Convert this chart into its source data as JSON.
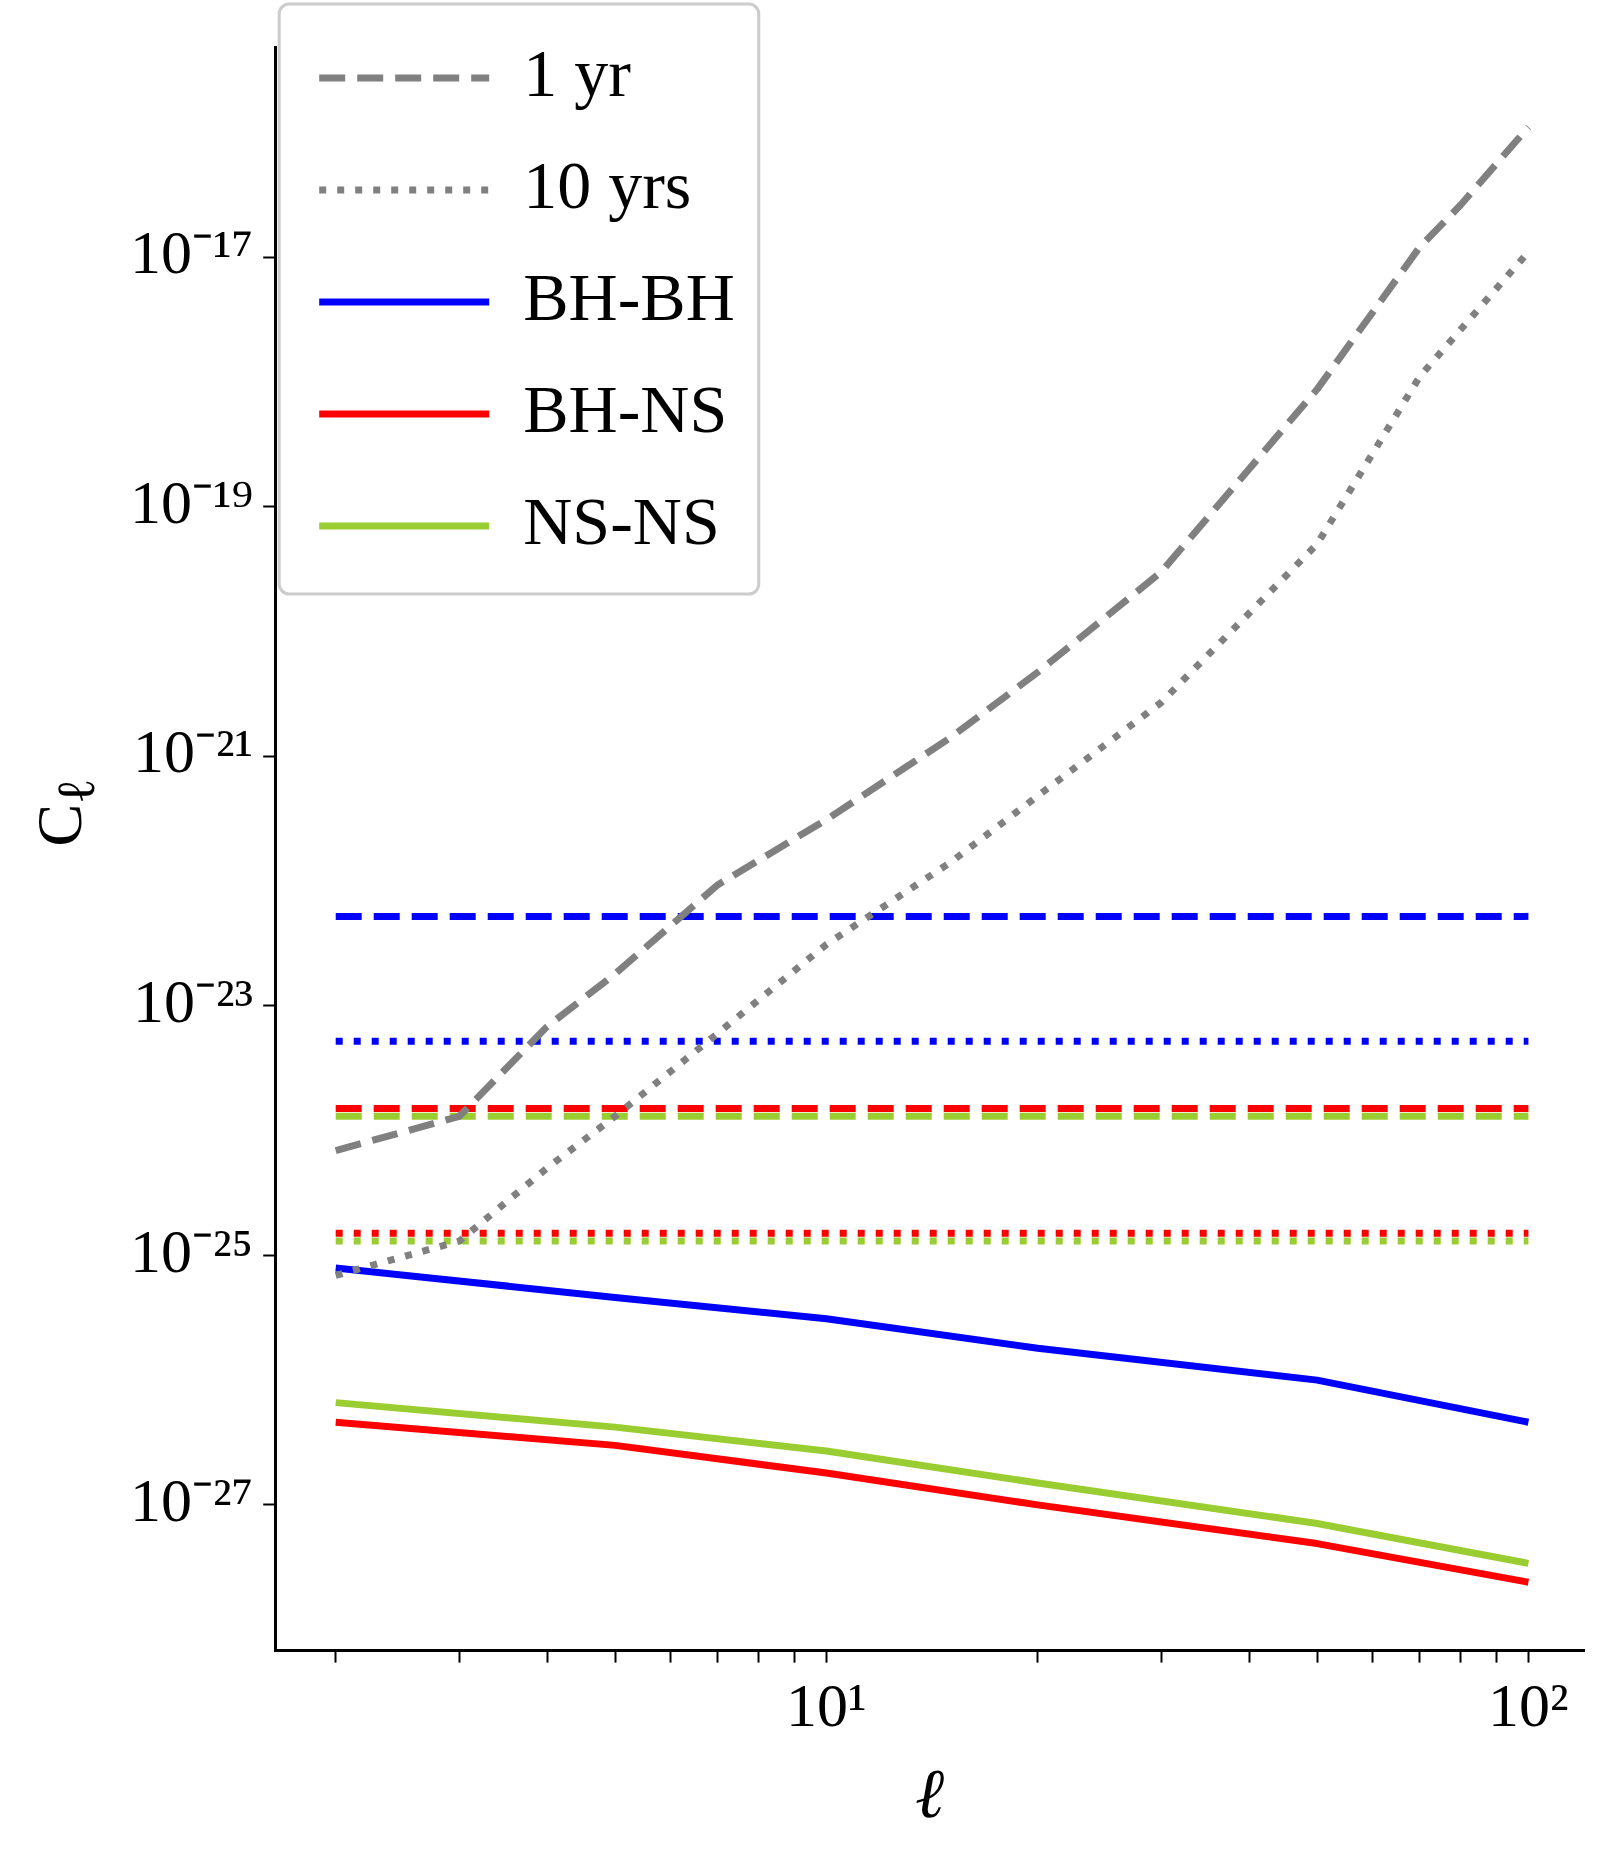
{
  "chart_data": {
    "type": "line",
    "xlabel": "ℓ",
    "ylabel": "C$_{ℓ}$",
    "log": "xy",
    "grid": false,
    "legend": "top left",
    "marker": "none",
    "xlim": [
      1.64,
      120
    ],
    "ylim": [
      6.8e-29,
      4.8e-16
    ],
    "xticks": [
      {
        "value": 2,
        "label": null
      },
      {
        "value": 3,
        "label": null
      },
      {
        "value": 4,
        "label": null
      },
      {
        "value": 5,
        "label": null
      },
      {
        "value": 6,
        "label": null
      },
      {
        "value": 7,
        "label": null
      },
      {
        "value": 8,
        "label": null
      },
      {
        "value": 9,
        "label": null
      },
      {
        "value": 10,
        "label": "10¹"
      },
      {
        "value": 20,
        "label": null
      },
      {
        "value": 30,
        "label": null
      },
      {
        "value": 40,
        "label": null
      },
      {
        "value": 50,
        "label": null
      },
      {
        "value": 60,
        "label": null
      },
      {
        "value": 70,
        "label": null
      },
      {
        "value": 80,
        "label": null
      },
      {
        "value": 90,
        "label": null
      },
      {
        "value": 100,
        "label": "10²"
      }
    ],
    "yticks": [
      {
        "value": 1e-27,
        "label": "10⁻²⁷"
      },
      {
        "value": 1e-25,
        "label": "10⁻²⁵"
      },
      {
        "value": 1e-23,
        "label": "10⁻²³"
      },
      {
        "value": 1e-21,
        "label": "10⁻²¹"
      },
      {
        "value": 1e-19,
        "label": "10⁻¹⁹"
      },
      {
        "value": 1e-17,
        "label": "10⁻¹⁷"
      }
    ],
    "series": [
      {
        "name": "1 yr",
        "color": "#808080",
        "line_style": "dashed",
        "x": [
          2,
          3,
          4,
          5,
          7,
          10,
          15,
          20,
          30,
          50,
          70,
          80,
          100
        ],
        "values": [
          6.9e-25,
          1.3e-24,
          6.8e-24,
          1.8e-23,
          9.3e-23,
          3.1e-22,
          1.4e-21,
          4.7e-21,
          3e-20,
          8.7e-19,
          1.2e-17,
          2.6e-17,
          1.1e-16
        ]
      },
      {
        "name": "10 yrs",
        "color": "#808080",
        "line_style": "dotted",
        "x": [
          2,
          3,
          4,
          5,
          7,
          10,
          15,
          20,
          30,
          50,
          70,
          100
        ],
        "values": [
          6.9e-26,
          1.3e-25,
          5e-25,
          1.3e-24,
          6e-24,
          3.1e-23,
          1.4e-22,
          4.8e-22,
          2.7e-21,
          5e-20,
          1.1e-18,
          1.1e-17
        ]
      },
      {
        "name": "BH-BH",
        "color": "#0000ff",
        "line_style": "solid",
        "x": [
          2,
          5,
          10,
          20,
          50,
          100
        ],
        "values": [
          7.9e-26,
          4.6e-26,
          3.1e-26,
          1.8e-26,
          1e-26,
          4.6e-27
        ]
      },
      {
        "name": "BH-NS",
        "color": "#ff0000",
        "line_style": "solid",
        "x": [
          2,
          5,
          10,
          20,
          50,
          100
        ],
        "values": [
          4.6e-27,
          3e-27,
          1.8e-27,
          1e-27,
          4.9e-28,
          2.4e-28
        ]
      },
      {
        "name": "NS-NS",
        "color": "#9acd32",
        "line_style": "solid",
        "x": [
          2,
          5,
          10,
          20,
          50,
          100
        ],
        "values": [
          6.6e-27,
          4.2e-27,
          2.7e-27,
          1.5e-27,
          7.1e-28,
          3.4e-28
        ]
      },
      {
        "color": "#0000ff",
        "line_style": "dashed",
        "x": [
          2,
          100
        ],
        "values": [
          5.2e-23,
          5.2e-23
        ]
      },
      {
        "color": "#0000ff",
        "line_style": "dotted",
        "x": [
          2,
          100
        ],
        "values": [
          5.2e-24,
          5.2e-24
        ]
      },
      {
        "color": "#ff0000",
        "line_style": "dashed",
        "x": [
          2,
          100
        ],
        "values": [
          1.5e-24,
          1.5e-24
        ]
      },
      {
        "color": "#9acd32",
        "line_style": "dashed",
        "x": [
          2,
          100
        ],
        "values": [
          1.3e-24,
          1.3e-24
        ]
      },
      {
        "color": "#ff0000",
        "line_style": "dotted",
        "x": [
          2,
          100
        ],
        "values": [
          1.5e-25,
          1.5e-25
        ]
      },
      {
        "color": "#9acd32",
        "line_style": "dotted",
        "x": [
          2,
          100
        ],
        "values": [
          1.3e-25,
          1.3e-25
        ]
      }
    ]
  }
}
